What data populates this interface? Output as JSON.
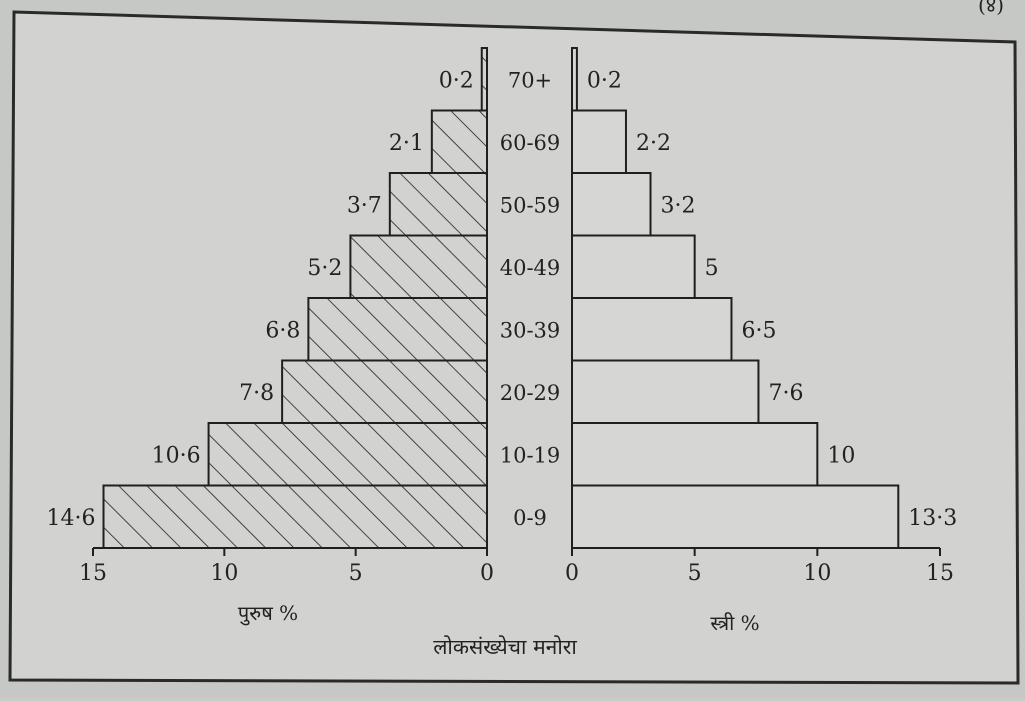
{
  "page": {
    "corner_mark": "(४)"
  },
  "colors": {
    "paper": "#d2d3d1",
    "ink": "#1f1f1f",
    "frame": "#2a2a2a"
  },
  "chart_data": {
    "type": "bar",
    "subtype": "population-pyramid",
    "title": "लोकसंख्येचा मनोरा",
    "categories": [
      "0-9",
      "10-19",
      "20-29",
      "30-39",
      "40-49",
      "50-59",
      "60-69",
      "70+"
    ],
    "series": [
      {
        "name": "पुरुष %",
        "side": "left",
        "fill": "hatched",
        "values": [
          14.6,
          10.6,
          7.8,
          6.8,
          5.2,
          3.7,
          2.1,
          0.2
        ],
        "value_labels": [
          "14·6",
          "10·6",
          "7·8",
          "6·8",
          "5·2",
          "3·7",
          "2·1",
          "0·2"
        ]
      },
      {
        "name": "स्त्री %",
        "side": "right",
        "fill": "plain",
        "values": [
          13.3,
          10,
          7.6,
          6.5,
          5,
          3.2,
          2.2,
          0.2
        ],
        "value_labels": [
          "13·3",
          "10",
          "7·6",
          "6·5",
          "5",
          "3·2",
          "2·2",
          "0·2"
        ]
      }
    ],
    "left_axis": {
      "label": "पुरुष %",
      "ticks": [
        "15",
        "10",
        "5",
        "0"
      ],
      "range": [
        15,
        0
      ]
    },
    "right_axis": {
      "label": "स्त्री %",
      "ticks": [
        "0",
        "5",
        "10",
        "15"
      ],
      "range": [
        0,
        15
      ]
    },
    "grid": false,
    "legend": "none"
  }
}
